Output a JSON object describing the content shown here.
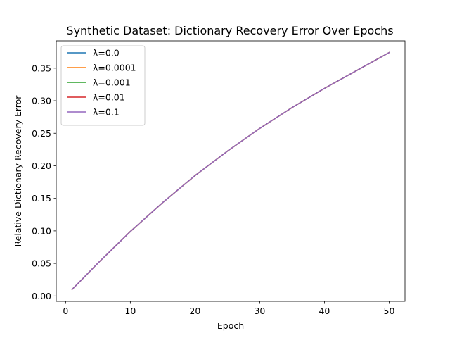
{
  "chart_data": {
    "type": "line",
    "title": "Synthetic Dataset: Dictionary Recovery Error Over Epochs",
    "xlabel": "Epoch",
    "ylabel": "Relative Dictionary Recovery Error",
    "xlim": [
      -1.45,
      52.45
    ],
    "ylim": [
      -0.0083,
      0.392
    ],
    "xticks": [
      0,
      10,
      20,
      30,
      40,
      50
    ],
    "yticks": [
      0.0,
      0.05,
      0.1,
      0.15,
      0.2,
      0.25,
      0.3,
      0.35
    ],
    "ytick_labels": [
      "0.00",
      "0.05",
      "0.10",
      "0.15",
      "0.20",
      "0.25",
      "0.30",
      "0.35"
    ],
    "grid": false,
    "legend_position": "top-left",
    "x": [
      1,
      5,
      10,
      15,
      20,
      25,
      30,
      35,
      40,
      45,
      50
    ],
    "series": [
      {
        "name": "λ=0.0",
        "color": "#1f77b4",
        "values": [
          0.01,
          0.0505,
          0.099,
          0.1435,
          0.185,
          0.2225,
          0.2575,
          0.2895,
          0.319,
          0.3465,
          0.374
        ]
      },
      {
        "name": "λ=0.0001",
        "color": "#ff7f0e",
        "values": [
          0.01,
          0.0505,
          0.099,
          0.1435,
          0.185,
          0.2225,
          0.2575,
          0.2895,
          0.319,
          0.3465,
          0.374
        ]
      },
      {
        "name": "λ=0.001",
        "color": "#2ca02c",
        "values": [
          0.01,
          0.0505,
          0.099,
          0.1435,
          0.185,
          0.2225,
          0.2575,
          0.2895,
          0.319,
          0.3465,
          0.374
        ]
      },
      {
        "name": "λ=0.01",
        "color": "#d62728",
        "values": [
          0.01,
          0.0505,
          0.099,
          0.1435,
          0.185,
          0.2225,
          0.2575,
          0.2895,
          0.319,
          0.3465,
          0.374
        ]
      },
      {
        "name": "λ=0.1",
        "color": "#9467bd",
        "values": [
          0.01,
          0.0505,
          0.099,
          0.1435,
          0.185,
          0.2225,
          0.2575,
          0.2895,
          0.319,
          0.3465,
          0.374
        ]
      }
    ]
  }
}
